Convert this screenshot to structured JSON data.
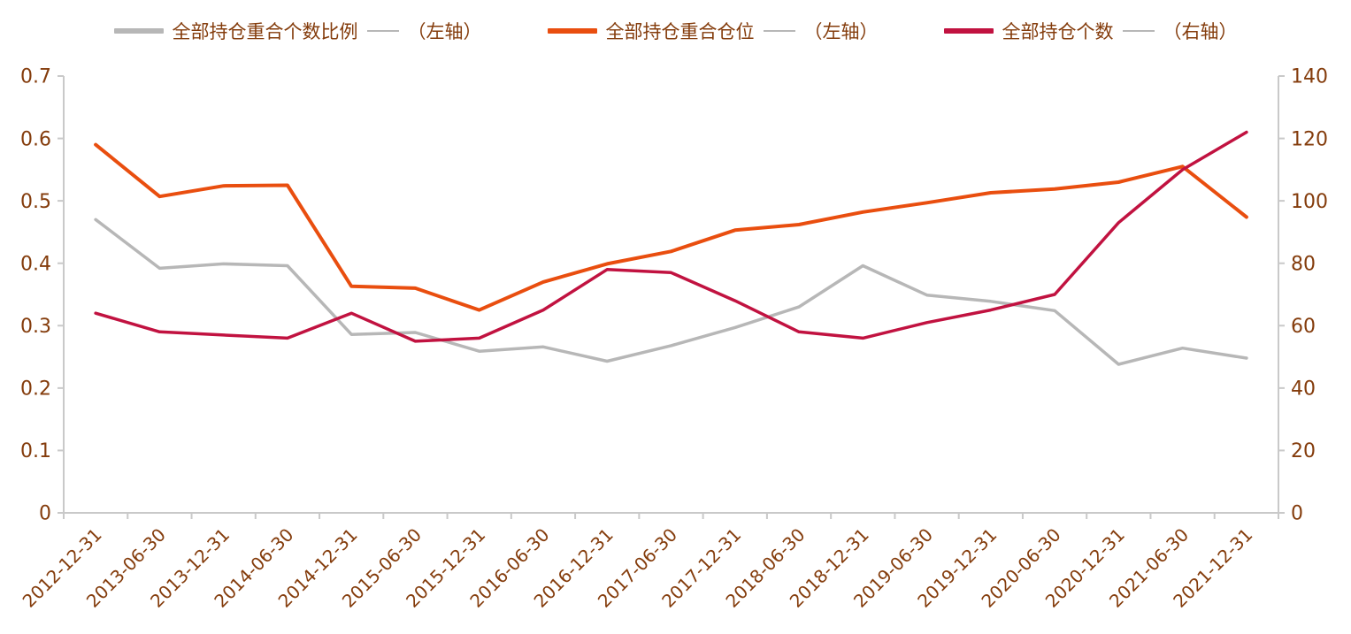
{
  "chart_data": {
    "type": "line",
    "title": "",
    "categories": [
      "2012-12-31",
      "2013-06-30",
      "2013-12-31",
      "2014-06-30",
      "2014-12-31",
      "2015-06-30",
      "2015-12-31",
      "2016-06-30",
      "2016-12-31",
      "2017-06-30",
      "2017-12-31",
      "2018-06-30",
      "2018-12-31",
      "2019-06-30",
      "2019-12-31",
      "2020-06-30",
      "2020-12-31",
      "2021-06-30",
      "2021-12-31"
    ],
    "series": [
      {
        "name": "全部持仓重合个数比例",
        "axis": "left",
        "color": "#b7b7b7",
        "values": [
          0.47,
          0.392,
          0.399,
          0.396,
          0.286,
          0.289,
          0.259,
          0.266,
          0.243,
          0.268,
          0.297,
          0.33,
          0.396,
          0.349,
          0.339,
          0.324,
          0.238,
          0.264,
          0.248
        ]
      },
      {
        "name": "全部持仓重合仓位",
        "axis": "left",
        "color": "#e94e0f",
        "values": [
          0.59,
          0.507,
          0.524,
          0.525,
          0.363,
          0.36,
          0.325,
          0.37,
          0.399,
          0.419,
          0.453,
          0.462,
          0.482,
          0.497,
          0.513,
          0.519,
          0.53,
          0.555,
          0.474
        ]
      },
      {
        "name": "全部持仓个数",
        "axis": "right",
        "color": "#c11240",
        "values": [
          64,
          58,
          57,
          56,
          64,
          55,
          56,
          65,
          78,
          77,
          68,
          58,
          56,
          61,
          65,
          70,
          93,
          110,
          122
        ]
      }
    ],
    "left_axis": {
      "min": 0,
      "max": 0.7,
      "step": 0.1,
      "ticks": [
        "0",
        "0.1",
        "0.2",
        "0.3",
        "0.4",
        "0.5",
        "0.6",
        "0.7"
      ],
      "side_label": "（左轴）"
    },
    "right_axis": {
      "min": 0,
      "max": 140,
      "step": 20,
      "ticks": [
        "0",
        "20",
        "40",
        "60",
        "80",
        "100",
        "120",
        "140"
      ],
      "side_label": "（右轴）"
    },
    "legend": [
      {
        "name": "全部持仓重合个数比例",
        "axis_label": "（左轴）",
        "color": "#b7b7b7"
      },
      {
        "name": "全部持仓重合仓位",
        "axis_label": "（左轴）",
        "color": "#e94e0f"
      },
      {
        "name": "全部持仓个数",
        "axis_label": "（右轴）",
        "color": "#c11240"
      }
    ],
    "legend_position": "top",
    "grid": false,
    "colors": {
      "text": "#843c0c",
      "axis_line": "#c9c9c9"
    }
  }
}
